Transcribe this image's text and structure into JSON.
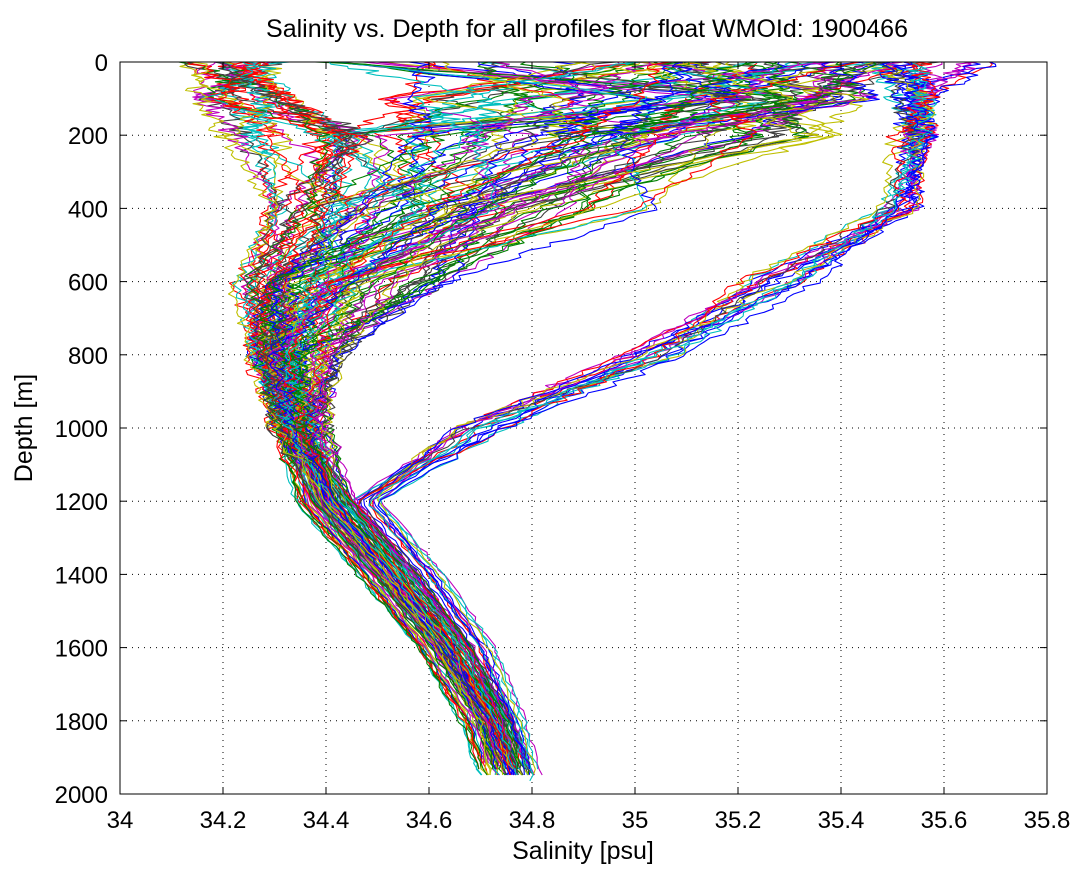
{
  "chart_data": {
    "type": "line",
    "title": "Salinity vs. Depth for all profiles for float WMOId: 1900466",
    "xlabel": "Salinity [psu]",
    "ylabel": "Depth [m]",
    "xlim": [
      34,
      35.8
    ],
    "ylim": [
      2000,
      0
    ],
    "y_reversed": true,
    "grid": true,
    "grid_style": "dotted",
    "legend": "none",
    "x_ticks": [
      "34",
      "34.2",
      "34.4",
      "34.6",
      "34.8",
      "35",
      "35.2",
      "35.4",
      "35.6",
      "35.8"
    ],
    "x_tick_values": [
      34,
      34.2,
      34.4,
      34.6,
      34.8,
      35,
      35.2,
      35.4,
      35.6,
      35.8
    ],
    "y_ticks": [
      "0",
      "200",
      "400",
      "600",
      "800",
      "1000",
      "1200",
      "1400",
      "1600",
      "1800",
      "2000"
    ],
    "y_tick_values": [
      0,
      200,
      400,
      600,
      800,
      1000,
      1200,
      1400,
      1600,
      1800,
      2000
    ],
    "colors": [
      "#0000ff",
      "#008000",
      "#ff0000",
      "#00bfbf",
      "#bf00bf",
      "#bfbf00",
      "#404040"
    ],
    "series_note": "approx. 140 individual float profiles, drawn in cycling colors",
    "series": [
      {
        "color": "#ff0000",
        "x": [
          35.05,
          35.0,
          34.9,
          34.6,
          34.42,
          34.32,
          34.35,
          34.45,
          34.55,
          34.65,
          34.72,
          34.76
        ],
        "y": [
          0,
          100,
          200,
          400,
          600,
          800,
          1000,
          1200,
          1400,
          1600,
          1800,
          1960
        ]
      },
      {
        "color": "#0000ff",
        "x": [
          35.1,
          35.05,
          34.95,
          34.62,
          34.45,
          34.3,
          34.33,
          34.42,
          34.52,
          34.62,
          34.7,
          34.74
        ],
        "y": [
          0,
          100,
          200,
          400,
          600,
          800,
          1000,
          1200,
          1400,
          1600,
          1800,
          1960
        ]
      },
      {
        "color": "#008000",
        "x": [
          35.2,
          35.1,
          35.0,
          34.7,
          34.5,
          34.35,
          34.35,
          34.45,
          34.58,
          34.68,
          34.75,
          34.78
        ],
        "y": [
          0,
          100,
          200,
          400,
          600,
          800,
          1000,
          1200,
          1400,
          1600,
          1800,
          1960
        ]
      },
      {
        "color": "#bf00bf",
        "x": [
          35.3,
          35.2,
          35.05,
          34.75,
          34.55,
          34.4,
          34.38,
          34.46,
          34.57,
          34.67,
          34.74,
          34.78
        ],
        "y": [
          0,
          100,
          200,
          400,
          600,
          800,
          1000,
          1200,
          1400,
          1600,
          1800,
          1960
        ]
      },
      {
        "color": "#00bfbf",
        "x": [
          35.55,
          35.55,
          35.56,
          35.5,
          35.3,
          35.05,
          34.7,
          34.48,
          34.6,
          34.7,
          34.77,
          34.8
        ],
        "y": [
          0,
          100,
          200,
          400,
          600,
          800,
          1000,
          1200,
          1400,
          1600,
          1800,
          1960
        ]
      },
      {
        "color": "#0000ff",
        "x": [
          35.52,
          35.54,
          35.57,
          35.52,
          35.35,
          35.1,
          34.75,
          34.5,
          34.6,
          34.7,
          34.76,
          34.8
        ],
        "y": [
          0,
          100,
          200,
          400,
          600,
          800,
          1000,
          1200,
          1400,
          1600,
          1800,
          1960
        ]
      },
      {
        "color": "#bfbf00",
        "x": [
          34.15,
          34.15,
          34.2,
          34.3,
          34.22,
          34.25,
          34.3,
          34.4,
          34.52,
          34.62,
          34.7,
          34.72
        ],
        "y": [
          0,
          100,
          200,
          400,
          600,
          800,
          1000,
          1200,
          1400,
          1600,
          1800,
          1960
        ]
      },
      {
        "color": "#404040",
        "x": [
          34.2,
          34.3,
          34.45,
          34.35,
          34.25,
          34.28,
          34.3,
          34.38,
          34.5,
          34.62,
          34.72,
          34.78
        ],
        "y": [
          0,
          100,
          200,
          400,
          600,
          800,
          1000,
          1200,
          1400,
          1600,
          1800,
          1960
        ]
      }
    ]
  }
}
